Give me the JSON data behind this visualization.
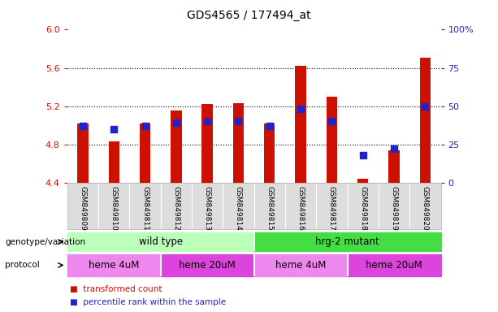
{
  "title": "GDS4565 / 177494_at",
  "samples": [
    "GSM849809",
    "GSM849810",
    "GSM849811",
    "GSM849812",
    "GSM849813",
    "GSM849814",
    "GSM849815",
    "GSM849816",
    "GSM849817",
    "GSM849818",
    "GSM849819",
    "GSM849820"
  ],
  "transformed_count": [
    5.02,
    4.83,
    5.02,
    5.15,
    5.22,
    5.23,
    5.02,
    5.62,
    5.3,
    4.44,
    4.74,
    5.71
  ],
  "percentile_rank": [
    37,
    35,
    37,
    39,
    40,
    40,
    37,
    48,
    40,
    18,
    22,
    50
  ],
  "ylim_left": [
    4.4,
    6.0
  ],
  "ylim_right": [
    0,
    100
  ],
  "yticks_left": [
    4.4,
    4.8,
    5.2,
    5.6,
    6.0
  ],
  "yticks_right": [
    0,
    25,
    50,
    75,
    100
  ],
  "bar_color": "#cc1100",
  "dot_color": "#2222cc",
  "bar_bottom": 4.4,
  "genotype_groups": [
    {
      "label": "wild type",
      "start": 0,
      "end": 6,
      "color": "#bbffbb"
    },
    {
      "label": "hrg-2 mutant",
      "start": 6,
      "end": 12,
      "color": "#44dd44"
    }
  ],
  "protocol_groups": [
    {
      "label": "heme 4uM",
      "start": 0,
      "end": 3,
      "color": "#ee88ee"
    },
    {
      "label": "heme 20uM",
      "start": 3,
      "end": 6,
      "color": "#dd44dd"
    },
    {
      "label": "heme 4uM",
      "start": 6,
      "end": 9,
      "color": "#ee88ee"
    },
    {
      "label": "heme 20uM",
      "start": 9,
      "end": 12,
      "color": "#dd44dd"
    }
  ],
  "left_label_color": "#cc1100",
  "right_label_color": "#2222cc",
  "genotype_label": "genotype/variation",
  "protocol_label": "protocol",
  "legend_items": [
    {
      "color": "#cc1100",
      "label": "transformed count"
    },
    {
      "color": "#2222cc",
      "label": "percentile rank within the sample"
    }
  ],
  "bg_color": "#dddddd",
  "grid_color": "#000000",
  "dot_size": 35,
  "bar_width": 0.35
}
